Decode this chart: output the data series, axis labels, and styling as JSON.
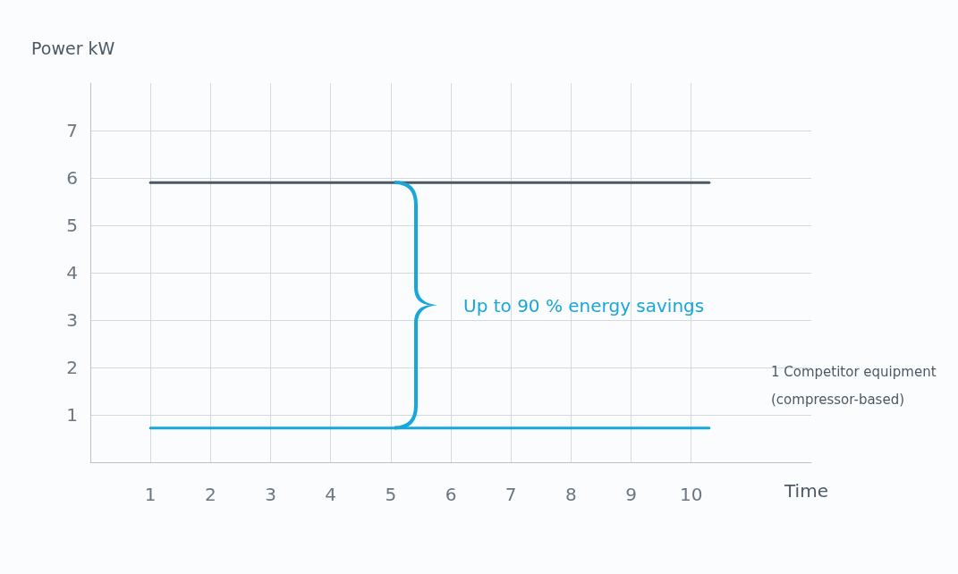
{
  "chart_data": {
    "type": "line",
    "xlabel": "Time",
    "ylabel": "Power kW",
    "x": [
      1,
      10.3
    ],
    "series": [
      {
        "name": "1 Competitor equipment (compressor-based)",
        "color": "#4b5966",
        "values": [
          5.9,
          5.9
        ]
      },
      {
        "color": "#19a6d9",
        "values": [
          0.72,
          0.72
        ]
      }
    ],
    "xlim": [
      0,
      12
    ],
    "xticks": [
      1,
      2,
      3,
      4,
      5,
      6,
      7,
      8,
      9,
      10
    ],
    "ylim": [
      0,
      8
    ],
    "yticks": [
      1,
      2,
      3,
      4,
      5,
      6,
      7
    ],
    "grid": true,
    "legend": "right",
    "marker": "none",
    "line_style": "solid",
    "annotations": [
      "Up to 90 % energy savings"
    ]
  }
}
